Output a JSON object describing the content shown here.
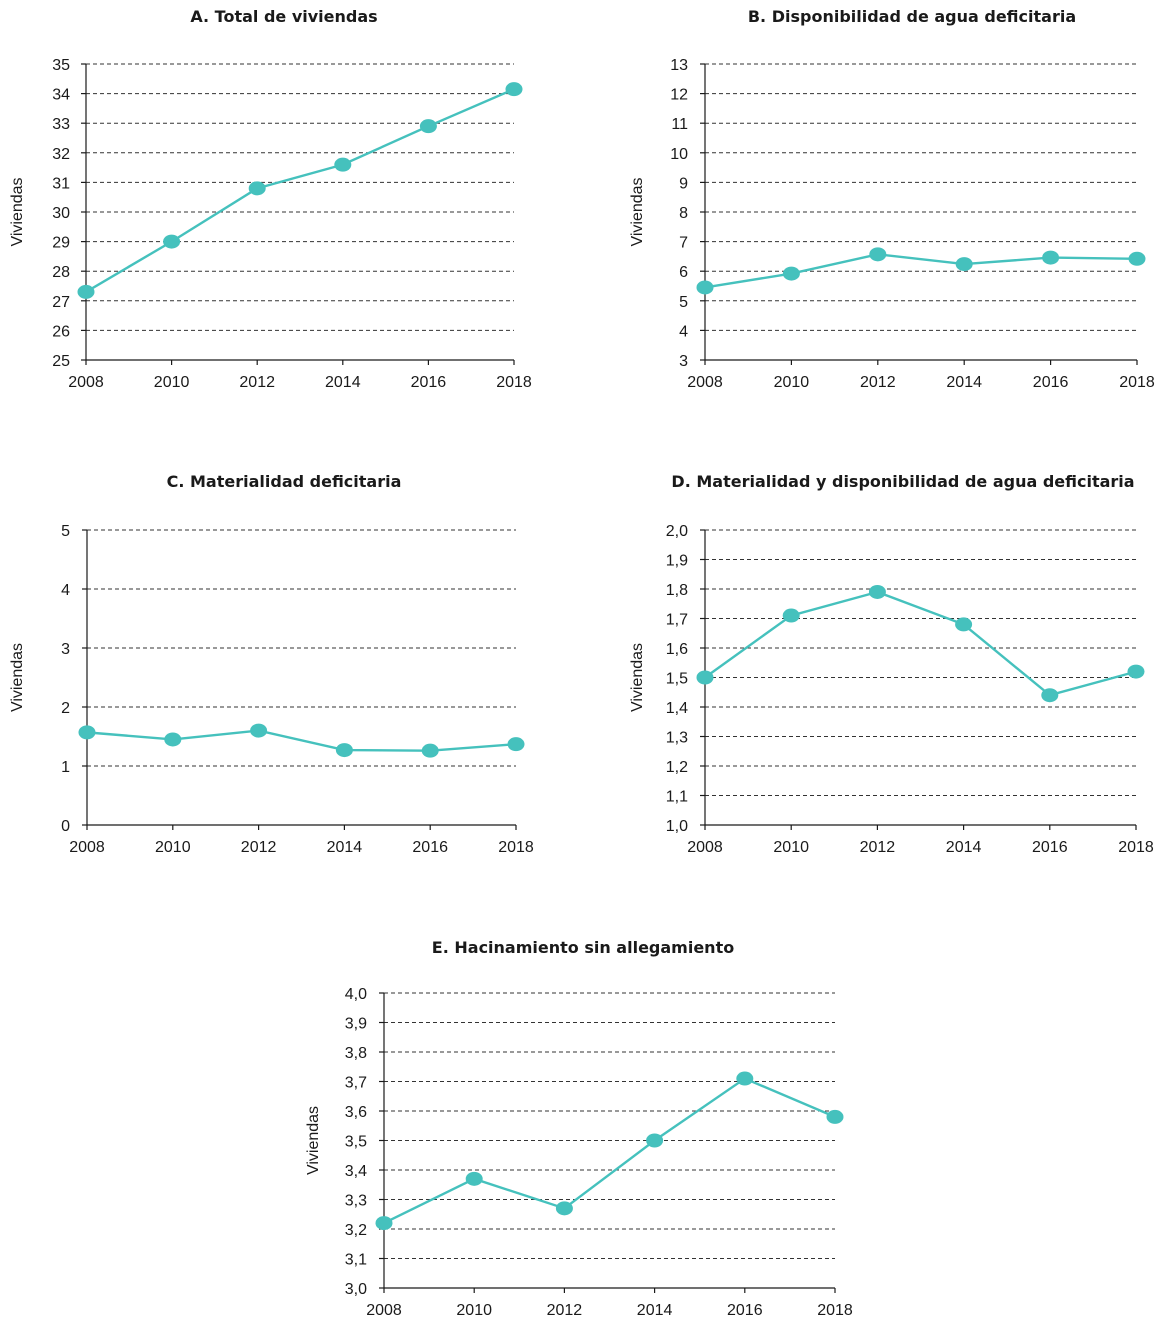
{
  "colors": {
    "series": "#45c1bd",
    "axis": "#1a1a1a",
    "grid": "#333333"
  },
  "chart_data": [
    {
      "type": "line",
      "title": "A. Total de viviendas",
      "ylabel": "Viviendas",
      "x": [
        2008,
        2010,
        2012,
        2014,
        2016,
        2018
      ],
      "y": [
        27.3,
        29.0,
        30.8,
        31.6,
        32.9,
        34.15
      ],
      "ylim": [
        25,
        35
      ],
      "yticks": [
        "25",
        "26",
        "27",
        "28",
        "29",
        "30",
        "31",
        "32",
        "33",
        "34",
        "35"
      ],
      "xticks": [
        "2008",
        "2010",
        "2012",
        "2014",
        "2016",
        "2018"
      ],
      "grid": true
    },
    {
      "type": "line",
      "title": "B. Disponibilidad de agua deficitaria",
      "ylabel": "Viviendas",
      "x": [
        2008,
        2010,
        2012,
        2014,
        2016,
        2018
      ],
      "y": [
        5.45,
        5.92,
        6.57,
        6.24,
        6.46,
        6.42
      ],
      "ylim": [
        3,
        13
      ],
      "yticks": [
        "3",
        "4",
        "5",
        "6",
        "7",
        "8",
        "9",
        "10",
        "11",
        "12",
        "13"
      ],
      "xticks": [
        "2008",
        "2010",
        "2012",
        "2014",
        "2016",
        "2018"
      ],
      "grid": true
    },
    {
      "type": "line",
      "title": "C. Materialidad deficitaria",
      "ylabel": "Viviendas",
      "x": [
        2008,
        2010,
        2012,
        2014,
        2016,
        2018
      ],
      "y": [
        1.57,
        1.45,
        1.6,
        1.27,
        1.26,
        1.37
      ],
      "ylim": [
        0,
        5
      ],
      "yticks": [
        "0",
        "1",
        "2",
        "3",
        "4",
        "5"
      ],
      "xticks": [
        "2008",
        "2010",
        "2012",
        "2014",
        "2016",
        "2018"
      ],
      "grid": true
    },
    {
      "type": "line",
      "title": "D. Materialidad y disponibilidad de agua deficitaria",
      "ylabel": "Viviendas",
      "x": [
        2008,
        2010,
        2012,
        2014,
        2016,
        2018
      ],
      "y": [
        1.5,
        1.71,
        1.79,
        1.68,
        1.44,
        1.52
      ],
      "ylim": [
        1.0,
        2.0
      ],
      "yticks": [
        "1,0",
        "1,1",
        "1,2",
        "1,3",
        "1,4",
        "1,5",
        "1,6",
        "1,7",
        "1,8",
        "1,9",
        "2,0"
      ],
      "xticks": [
        "2008",
        "2010",
        "2012",
        "2014",
        "2016",
        "2018"
      ],
      "grid": true
    },
    {
      "type": "line",
      "title": "E. Hacinamiento sin allegamiento",
      "ylabel": "Viviendas",
      "x": [
        2008,
        2010,
        2012,
        2014,
        2016,
        2018
      ],
      "y": [
        3.22,
        3.37,
        3.27,
        3.5,
        3.71,
        3.58
      ],
      "ylim": [
        3.0,
        4.0
      ],
      "yticks": [
        "3,0",
        "3,1",
        "3,2",
        "3,3",
        "3,4",
        "3,5",
        "3,6",
        "3,7",
        "3,8",
        "3,9",
        "4,0"
      ],
      "xticks": [
        "2008",
        "2010",
        "2012",
        "2014",
        "2016",
        "2018"
      ],
      "grid": true
    }
  ]
}
